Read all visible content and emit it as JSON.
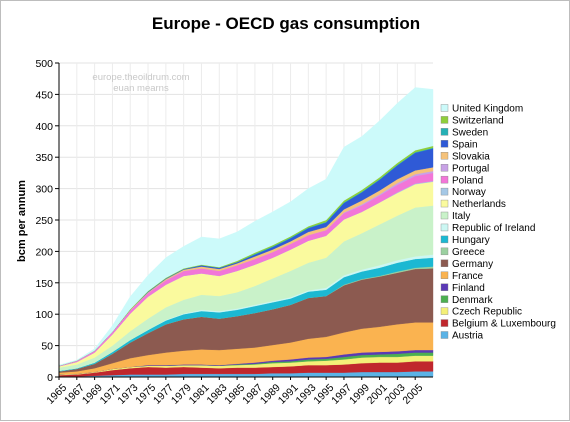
{
  "chart_data": {
    "type": "area",
    "stacked": true,
    "title": "Europe - OECD gas consumption",
    "ylabel": "bcm per annum",
    "xlabel": "",
    "watermark": [
      "europe.theoildrum.com",
      "euan mearns"
    ],
    "ylim": [
      0,
      500
    ],
    "yticks": [
      0,
      50,
      100,
      150,
      200,
      250,
      300,
      350,
      400,
      450,
      500
    ],
    "xlim": [
      1965,
      2007
    ],
    "xtick_labels": [
      "1965",
      "1967",
      "1969",
      "1971",
      "1973",
      "1975",
      "1977",
      "1979",
      "1981",
      "1983",
      "1985",
      "1987",
      "1989",
      "1991",
      "1993",
      "1995",
      "1997",
      "1999",
      "2001",
      "2003",
      "2005"
    ],
    "grid": true,
    "legend_position": "right",
    "x": [
      1965,
      1967,
      1969,
      1971,
      1973,
      1975,
      1977,
      1979,
      1981,
      1983,
      1985,
      1987,
      1989,
      1991,
      1993,
      1995,
      1997,
      1999,
      2001,
      2003,
      2005,
      2007
    ],
    "series": [
      {
        "name": "Austria",
        "color": "#5bb3e6",
        "values": [
          1,
          1,
          2,
          3,
          4,
          4,
          4,
          5,
          5,
          5,
          5,
          5,
          6,
          6,
          7,
          7,
          7,
          8,
          8,
          8,
          9,
          9
        ]
      },
      {
        "name": "Belgium & Luxembourg",
        "color": "#c0272d",
        "values": [
          2,
          3,
          5,
          8,
          10,
          12,
          11,
          11,
          10,
          9,
          10,
          10,
          10,
          11,
          12,
          12,
          13,
          14,
          15,
          15,
          16,
          16
        ]
      },
      {
        "name": "Czech Republic",
        "color": "#f4f078",
        "values": [
          1,
          1,
          1,
          2,
          2,
          2,
          3,
          3,
          4,
          4,
          4,
          5,
          6,
          6,
          6,
          7,
          8,
          9,
          9,
          9,
          9,
          9
        ]
      },
      {
        "name": "Denmark",
        "color": "#4caf50",
        "values": [
          0,
          0,
          0,
          0,
          0,
          0,
          0,
          0,
          0,
          0,
          1,
          1,
          2,
          2,
          3,
          3,
          4,
          4,
          4,
          5,
          5,
          5
        ]
      },
      {
        "name": "Finland",
        "color": "#5a39b5",
        "values": [
          0,
          0,
          0,
          0,
          0,
          1,
          1,
          1,
          1,
          1,
          1,
          2,
          2,
          3,
          3,
          3,
          4,
          4,
          4,
          4,
          4,
          4
        ]
      },
      {
        "name": "France",
        "color": "#fab350",
        "values": [
          3,
          4,
          6,
          9,
          14,
          16,
          20,
          22,
          24,
          24,
          24,
          24,
          25,
          27,
          30,
          32,
          35,
          38,
          40,
          43,
          44,
          44
        ]
      },
      {
        "name": "Germany",
        "color": "#8c5a50",
        "values": [
          2,
          4,
          7,
          15,
          25,
          35,
          45,
          50,
          52,
          50,
          52,
          55,
          57,
          60,
          65,
          65,
          75,
          78,
          80,
          82,
          85,
          86
        ]
      },
      {
        "name": "Greece",
        "color": "#9bd0a0",
        "values": [
          0,
          0,
          0,
          0,
          0,
          0,
          0,
          0,
          0,
          0,
          0,
          0,
          0,
          0,
          0,
          0,
          1,
          1,
          1,
          2,
          2,
          3
        ]
      },
      {
        "name": "Hungary",
        "color": "#1cb8d2",
        "values": [
          1,
          1,
          2,
          3,
          4,
          5,
          6,
          8,
          9,
          10,
          10,
          11,
          11,
          10,
          10,
          10,
          12,
          12,
          13,
          14,
          14,
          14
        ]
      },
      {
        "name": "Republic of Ireland",
        "color": "#ccf7f3",
        "values": [
          0,
          0,
          0,
          0,
          0,
          0,
          1,
          1,
          2,
          2,
          2,
          2,
          2,
          2,
          2,
          3,
          3,
          3,
          4,
          4,
          4,
          5
        ]
      },
      {
        "name": "Italy",
        "color": "#c9f2c9",
        "values": [
          5,
          6,
          8,
          10,
          14,
          18,
          20,
          22,
          24,
          24,
          26,
          30,
          36,
          42,
          44,
          48,
          54,
          58,
          65,
          71,
          78,
          78
        ]
      },
      {
        "name": "Netherlands",
        "color": "#fafa9e",
        "values": [
          2,
          4,
          8,
          18,
          28,
          35,
          36,
          38,
          34,
          32,
          34,
          34,
          33,
          34,
          35,
          35,
          35,
          34,
          35,
          36,
          37,
          38
        ]
      },
      {
        "name": "Norway",
        "color": "#a5c8e6",
        "values": [
          0,
          0,
          0,
          0,
          0,
          0,
          0,
          0,
          0,
          0,
          0,
          0,
          0,
          0,
          0,
          0,
          0,
          0,
          0,
          1,
          1,
          1
        ]
      },
      {
        "name": "Poland",
        "color": "#f276d8",
        "values": [
          1,
          2,
          3,
          4,
          5,
          6,
          7,
          8,
          8,
          8,
          9,
          9,
          9,
          9,
          9,
          9,
          10,
          10,
          11,
          12,
          12,
          13
        ]
      },
      {
        "name": "Portugal",
        "color": "#c8a2e6",
        "values": [
          0,
          0,
          0,
          0,
          0,
          0,
          0,
          0,
          0,
          0,
          0,
          0,
          0,
          0,
          0,
          0,
          1,
          2,
          2,
          3,
          3,
          3
        ]
      },
      {
        "name": "Slovakia",
        "color": "#f5c27a",
        "values": [
          0,
          0,
          0,
          0,
          1,
          1,
          2,
          2,
          3,
          3,
          3,
          4,
          4,
          4,
          5,
          5,
          5,
          6,
          6,
          6,
          6,
          6
        ]
      },
      {
        "name": "Spain",
        "color": "#2f5ad6",
        "values": [
          0,
          0,
          0,
          0,
          0,
          1,
          1,
          1,
          2,
          2,
          2,
          3,
          4,
          5,
          6,
          7,
          10,
          13,
          17,
          22,
          28,
          30
        ]
      },
      {
        "name": "Sweden",
        "color": "#25b0b5",
        "values": [
          0,
          0,
          0,
          0,
          0,
          0,
          0,
          0,
          0,
          0,
          0,
          1,
          1,
          1,
          1,
          1,
          1,
          1,
          1,
          1,
          1,
          1
        ]
      },
      {
        "name": "Switzerland",
        "color": "#8fce3b",
        "values": [
          0,
          0,
          0,
          0,
          1,
          1,
          1,
          1,
          1,
          1,
          2,
          2,
          2,
          2,
          2,
          3,
          3,
          3,
          3,
          3,
          3,
          3
        ]
      },
      {
        "name": "United Kingdom",
        "color": "#ccfafa",
        "values": [
          1,
          1,
          3,
          10,
          20,
          25,
          32,
          35,
          44,
          45,
          46,
          50,
          53,
          55,
          60,
          65,
          85,
          85,
          90,
          95,
          100,
          90
        ]
      }
    ]
  }
}
